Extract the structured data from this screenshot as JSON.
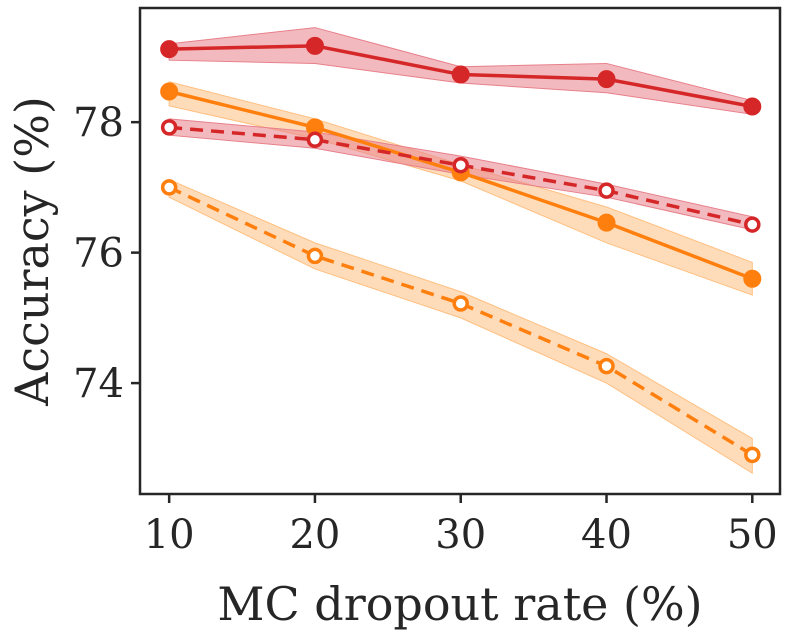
{
  "chart_data": {
    "type": "line",
    "title": "",
    "xlabel": "MC dropout rate (%)",
    "ylabel": "Accuracy (%)",
    "x": [
      10,
      20,
      30,
      40,
      50
    ],
    "x_ticks": [
      "10",
      "20",
      "30",
      "40",
      "50"
    ],
    "y_ticks": [
      "74",
      "76",
      "78"
    ],
    "y_tick_values": [
      74,
      76,
      78
    ],
    "xlim": [
      8,
      51.9
    ],
    "ylim": [
      72.3,
      79.75
    ],
    "grid": false,
    "legend": "none",
    "series": [
      {
        "name": "red-solid",
        "color": "#d62728",
        "band_color": "#e8808b",
        "line_style": "solid",
        "marker": "filled-circle",
        "values": [
          79.12,
          79.17,
          78.73,
          78.66,
          78.24
        ],
        "lower": [
          78.95,
          78.9,
          78.6,
          78.45,
          78.12
        ],
        "upper": [
          79.2,
          79.45,
          78.85,
          78.9,
          78.33
        ]
      },
      {
        "name": "orange-solid",
        "color": "#ff7f0e",
        "band_color": "#ffbf80",
        "line_style": "solid",
        "marker": "filled-circle",
        "values": [
          78.47,
          77.92,
          77.23,
          76.46,
          75.6
        ],
        "lower": [
          78.25,
          77.75,
          77.1,
          76.15,
          75.35
        ],
        "upper": [
          78.62,
          78.05,
          77.35,
          76.7,
          75.85
        ]
      },
      {
        "name": "red-dashed",
        "color": "#d62728",
        "band_color": "#e8808b",
        "line_style": "dashed",
        "marker": "open-circle",
        "values": [
          77.92,
          77.73,
          77.34,
          76.95,
          76.43
        ],
        "lower": [
          77.8,
          77.6,
          77.2,
          76.85,
          76.35
        ],
        "upper": [
          78.05,
          77.85,
          77.48,
          77.05,
          76.55
        ]
      },
      {
        "name": "orange-dashed",
        "color": "#ff7f0e",
        "band_color": "#ffbf80",
        "line_style": "dashed",
        "marker": "open-circle",
        "values": [
          77.0,
          75.95,
          75.22,
          74.26,
          72.9
        ],
        "lower": [
          76.85,
          75.75,
          75.0,
          74.0,
          72.62
        ],
        "upper": [
          77.12,
          76.15,
          75.4,
          74.45,
          73.15
        ]
      }
    ]
  }
}
